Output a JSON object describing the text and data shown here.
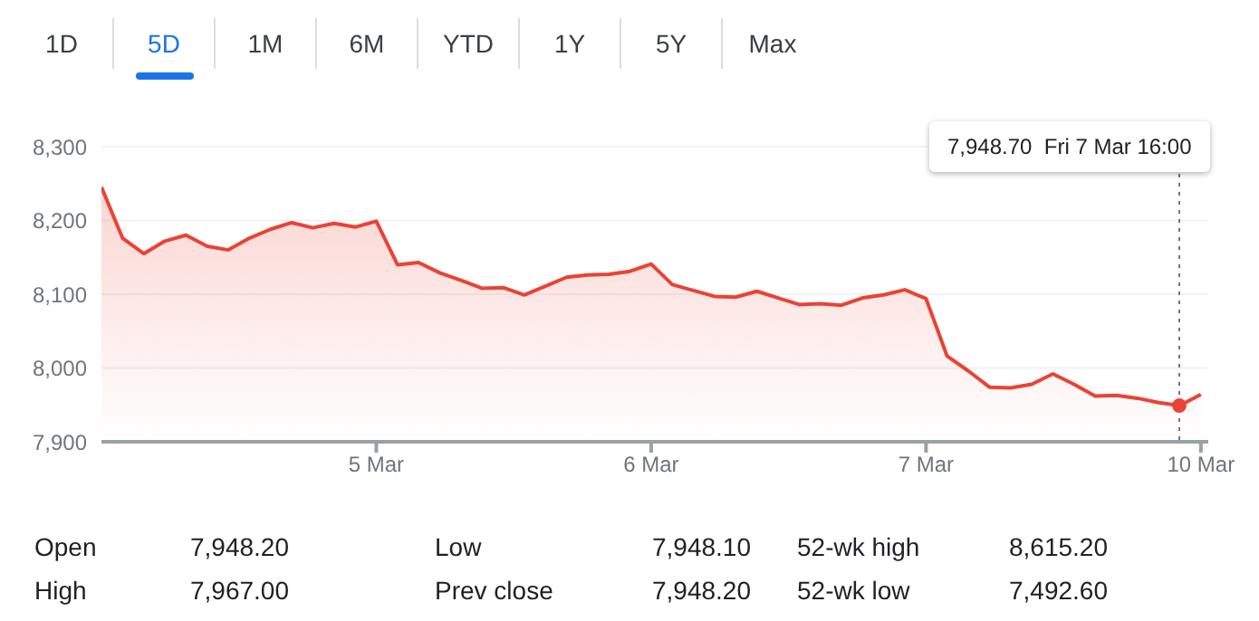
{
  "chart_data": {
    "type": "area",
    "categories": [
      null,
      null,
      null,
      null,
      null,
      null,
      null,
      null,
      null,
      null,
      null,
      null,
      null,
      "5 Mar",
      null,
      null,
      null,
      null,
      null,
      null,
      null,
      null,
      null,
      null,
      null,
      null,
      "6 Mar",
      null,
      null,
      null,
      null,
      null,
      null,
      null,
      null,
      null,
      null,
      null,
      null,
      "7 Mar",
      null,
      null,
      null,
      null,
      null,
      null,
      null,
      null,
      null,
      null,
      null,
      null,
      "10 Mar"
    ],
    "series": [
      {
        "color": "#ea4335",
        "values": [
          8245,
          8176,
          8155,
          8172,
          8180,
          8165,
          8160,
          8176,
          8188,
          8197,
          8190,
          8196,
          8191,
          8199,
          8140,
          8143,
          8129,
          8119,
          8108,
          8109,
          8099,
          8111,
          8123,
          8126,
          8127,
          8131,
          8141,
          8113,
          8105,
          8097,
          8096,
          8104,
          8095,
          8086,
          8087,
          8085,
          8095,
          8099,
          8106,
          8094,
          8016,
          7996,
          7974,
          7973,
          7978,
          7992,
          7978,
          7962,
          7963,
          7959,
          7953,
          7949,
          7964
        ]
      }
    ],
    "ylim": [
      7900,
      8300
    ],
    "yticks": [
      {
        "value": 7900,
        "label": "7,900"
      },
      {
        "value": 8000,
        "label": "8,000"
      },
      {
        "value": 8100,
        "label": "8,100"
      },
      {
        "value": 8200,
        "label": "8,200"
      },
      {
        "value": 8300,
        "label": "8,300"
      }
    ],
    "grid": "y",
    "legend": false,
    "marker": "none",
    "line_style": "solid",
    "annotations": [
      "1D",
      "5D",
      "1M",
      "6M",
      "YTD",
      "1Y",
      "5Y",
      "Max",
      "Open",
      "7,948.20",
      "High",
      "7,967.00",
      "Low",
      "7,948.10",
      "Prev close",
      "7,948.20",
      "52-wk high",
      "8,615.20",
      "52-wk low",
      "7,492.60",
      "7,948.70  Fri 7 Mar 16:00"
    ]
  }
}
